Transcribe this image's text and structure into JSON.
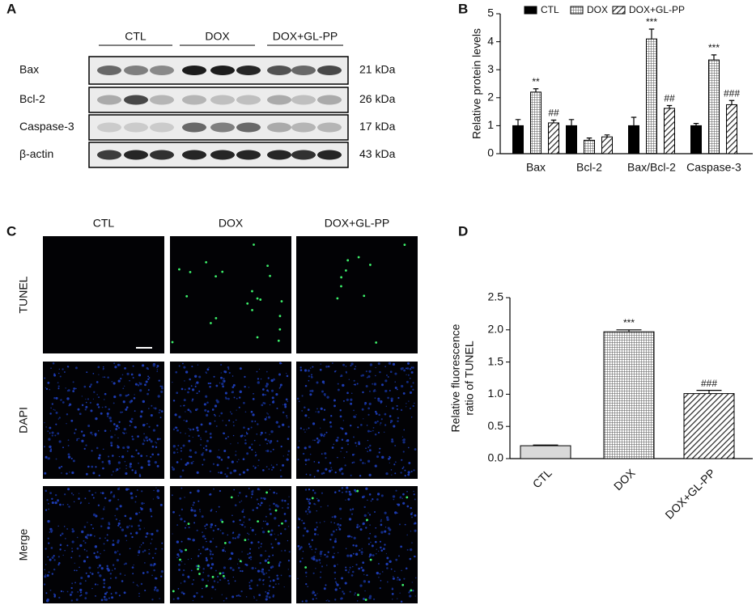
{
  "panel_labels": [
    "A",
    "B",
    "C",
    "D"
  ],
  "blot": {
    "groups": [
      "CTL",
      "DOX",
      "DOX+GL-PP"
    ],
    "rows": [
      {
        "label": "Bax",
        "size": "21 kDa"
      },
      {
        "label": "Bcl-2",
        "size": "26 kDa"
      },
      {
        "label": "Caspase-3",
        "size": "17 kDa"
      },
      {
        "label": "β-actin",
        "size": "43 kDa"
      }
    ]
  },
  "imaging": {
    "columns": [
      "CTL",
      "DOX",
      "DOX+GL-PP"
    ],
    "rows": [
      "TUNEL",
      "DAPI",
      "Merge"
    ]
  },
  "chart_data": [
    {
      "type": "bar",
      "ylabel": [
        "Relative protein  levels"
      ],
      "categories": [
        "Bax",
        "Bcl-2",
        "Bax/Bcl-2",
        "Caspase-3"
      ],
      "series": [
        {
          "name": "CTL",
          "color": "#000000",
          "pattern": "solid",
          "values": [
            1,
            1,
            1,
            1
          ],
          "errors": [
            0.22,
            0.22,
            0.3,
            0.08
          ],
          "annotations": [
            null,
            null,
            null,
            null
          ]
        },
        {
          "name": "DOX",
          "color": "#ffffff",
          "pattern": "grid",
          "values": [
            2.2,
            0.48,
            4.1,
            3.35
          ],
          "errors": [
            0.12,
            0.08,
            0.35,
            0.18
          ],
          "annotations": [
            "**",
            null,
            "***",
            "***"
          ]
        },
        {
          "name": "DOX+GL-PP",
          "color": "#ffffff",
          "pattern": "hatch",
          "values": [
            1.1,
            0.6,
            1.62,
            1.75
          ],
          "errors": [
            0.1,
            0.07,
            0.1,
            0.15
          ],
          "annotations": [
            "##",
            null,
            "##",
            "###"
          ]
        }
      ],
      "ylim": [
        0,
        5
      ],
      "yticks": [
        0,
        1,
        2,
        3,
        4,
        5
      ],
      "grid": false,
      "legend": "top"
    },
    {
      "type": "bar",
      "ylabel": [
        "Relative fluorescence",
        "ratio of TUNEL"
      ],
      "categories": [
        "CTL",
        "DOX",
        "DOX+GL-PP"
      ],
      "series": [
        {
          "colors": [
            "#d9d9d9",
            "#ffffff",
            "#ffffff"
          ],
          "patterns": [
            "solid",
            "grid",
            "hatch"
          ],
          "values": [
            0.2,
            1.97,
            1.01
          ],
          "errors": [
            0.01,
            0.03,
            0.05
          ],
          "annotations": [
            null,
            "***",
            "###"
          ]
        }
      ],
      "ylim": [
        0,
        2.5
      ],
      "yticks": [
        {
          "value": 0,
          "label": "0.0"
        },
        {
          "value": 0.5,
          "label": "0.5"
        },
        {
          "value": 1,
          "label": "1.0"
        },
        {
          "value": 1.5,
          "label": "1.5"
        },
        {
          "value": 2,
          "label": "2.0"
        },
        {
          "value": 2.5,
          "label": "2.5"
        }
      ],
      "grid": false
    }
  ]
}
